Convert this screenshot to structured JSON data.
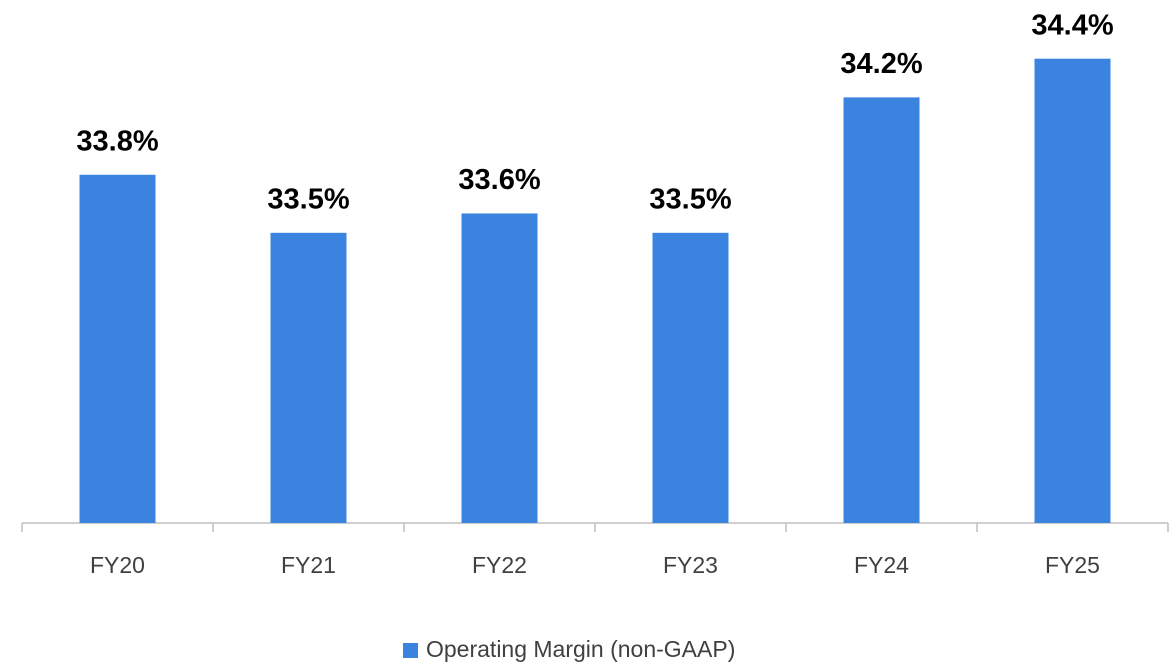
{
  "chart_data": {
    "type": "bar",
    "categories": [
      "FY20",
      "FY21",
      "FY22",
      "FY23",
      "FY24",
      "FY25"
    ],
    "series": [
      {
        "name": "Operating Margin (non-GAAP)",
        "color": "#3a84e0",
        "values": [
          33.8,
          33.5,
          33.6,
          33.5,
          34.2,
          34.4
        ],
        "value_labels": [
          "33.8%",
          "33.5%",
          "33.6%",
          "33.5%",
          "34.2%",
          "34.4%"
        ]
      }
    ],
    "ylim": [
      32,
      34.6
    ],
    "grid": false,
    "legend": "bottom"
  }
}
